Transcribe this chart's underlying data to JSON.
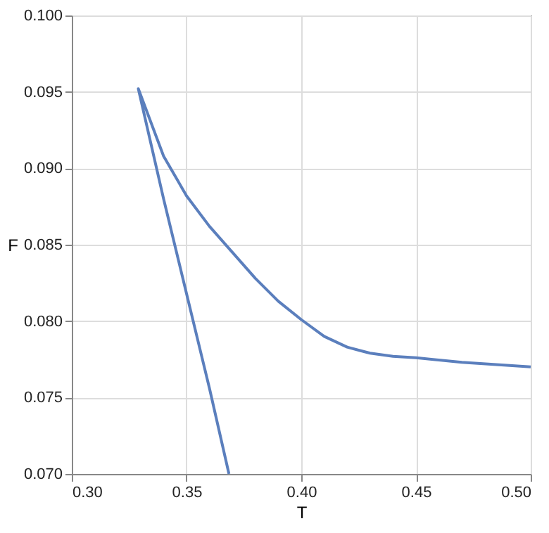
{
  "chart_data": {
    "type": "line",
    "xlabel": "T",
    "ylabel": "F",
    "series": [
      {
        "color": "#5b7fbd",
        "x": [
          0.3685,
          0.36,
          0.35,
          0.34,
          0.329,
          0.335,
          0.34,
          0.35,
          0.36,
          0.37,
          0.38,
          0.39,
          0.4,
          0.41,
          0.42,
          0.43,
          0.44,
          0.45,
          0.47,
          0.5
        ],
        "values": [
          0.07,
          0.0756,
          0.0818,
          0.088,
          0.0952,
          0.0928,
          0.0908,
          0.0882,
          0.0862,
          0.0845,
          0.0828,
          0.0813,
          0.0801,
          0.079,
          0.0783,
          0.0779,
          0.0777,
          0.0776,
          0.0773,
          0.077
        ]
      }
    ],
    "xlim": [
      0.3,
      0.5
    ],
    "xticks": [
      {
        "value": 0.3,
        "label": "0.30"
      },
      {
        "value": 0.35,
        "label": "0.35"
      },
      {
        "value": 0.4,
        "label": "0.40"
      },
      {
        "value": 0.45,
        "label": "0.45"
      },
      {
        "value": 0.5,
        "label": "0.50"
      }
    ],
    "ylim": [
      0.07,
      0.1
    ],
    "yticks": [
      {
        "value": 0.07,
        "label": "0.070"
      },
      {
        "value": 0.075,
        "label": "0.075"
      },
      {
        "value": 0.08,
        "label": "0.080"
      },
      {
        "value": 0.085,
        "label": "0.085"
      },
      {
        "value": 0.09,
        "label": "0.090"
      },
      {
        "value": 0.095,
        "label": "0.095"
      },
      {
        "value": 0.1,
        "label": "0.100"
      }
    ],
    "grid": true,
    "legend": false,
    "marker": "none",
    "line_style": "solid"
  }
}
